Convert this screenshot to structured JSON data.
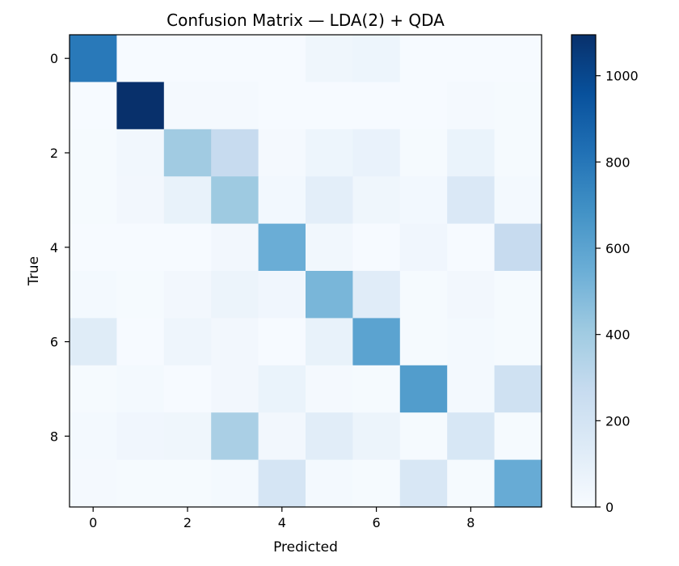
{
  "chart_data": {
    "type": "heatmap",
    "title": "Confusion Matrix — LDA(2) + QDA",
    "xlabel": "Predicted",
    "ylabel": "True",
    "x_ticks": [
      "0",
      "2",
      "4",
      "6",
      "8"
    ],
    "y_ticks": [
      "0",
      "2",
      "4",
      "6",
      "8"
    ],
    "colormap": "Blues",
    "vmin": 0,
    "vmax": 1095,
    "colorbar_ticks": [
      "0",
      "200",
      "400",
      "600",
      "800",
      "1000"
    ],
    "grid": false,
    "matrix": [
      [
        790,
        5,
        5,
        5,
        5,
        45,
        55,
        5,
        5,
        5
      ],
      [
        5,
        1095,
        15,
        15,
        5,
        5,
        5,
        5,
        15,
        10
      ],
      [
        10,
        35,
        400,
        270,
        15,
        55,
        75,
        10,
        70,
        10
      ],
      [
        10,
        30,
        80,
        410,
        25,
        110,
        45,
        25,
        160,
        20
      ],
      [
        5,
        5,
        5,
        30,
        550,
        35,
        5,
        40,
        5,
        270
      ],
      [
        20,
        10,
        30,
        60,
        40,
        510,
        125,
        10,
        30,
        10
      ],
      [
        130,
        5,
        50,
        30,
        5,
        80,
        600,
        10,
        20,
        10
      ],
      [
        10,
        20,
        5,
        30,
        70,
        15,
        10,
        630,
        20,
        220
      ],
      [
        20,
        40,
        45,
        370,
        30,
        120,
        60,
        10,
        175,
        10
      ],
      [
        15,
        10,
        10,
        20,
        190,
        20,
        10,
        170,
        10,
        560
      ]
    ]
  }
}
